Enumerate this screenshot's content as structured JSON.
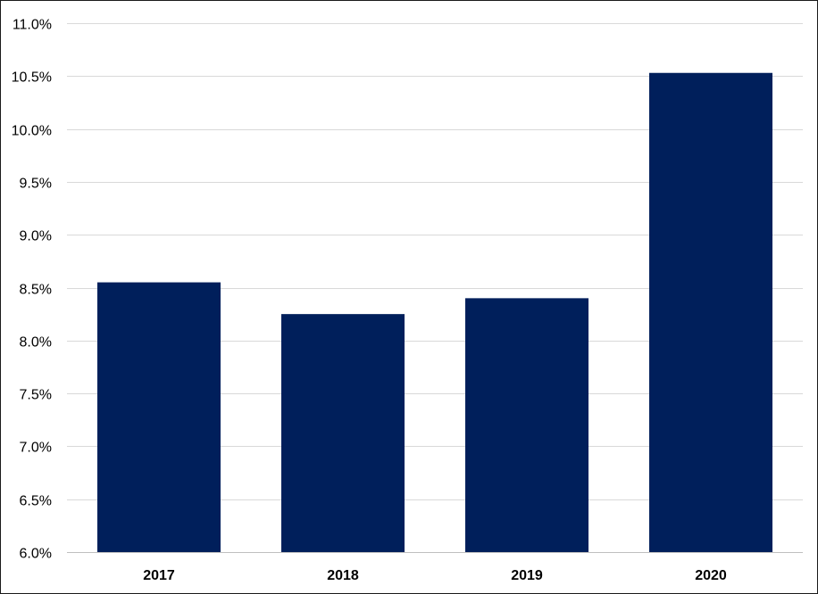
{
  "chart_data": {
    "type": "bar",
    "title": "",
    "xlabel": "",
    "ylabel": "",
    "categories": [
      "2017",
      "2018",
      "2019",
      "2020"
    ],
    "values": [
      8.55,
      8.25,
      8.4,
      10.53
    ],
    "ylim": [
      6.0,
      11.0
    ],
    "yticks": [
      6.0,
      6.5,
      7.0,
      7.5,
      8.0,
      8.5,
      9.0,
      9.5,
      10.0,
      10.5,
      11.0
    ],
    "ytick_labels": [
      "6.0%",
      "6.5%",
      "7.0%",
      "7.5%",
      "8.0%",
      "8.5%",
      "9.0%",
      "9.5%",
      "10.0%",
      "10.5%",
      "11.0%"
    ],
    "grid": true,
    "legend": "none",
    "colors": {
      "bar": "#001f5b",
      "grid": "#d9d9d9",
      "axis": "#bfbfbf"
    }
  }
}
